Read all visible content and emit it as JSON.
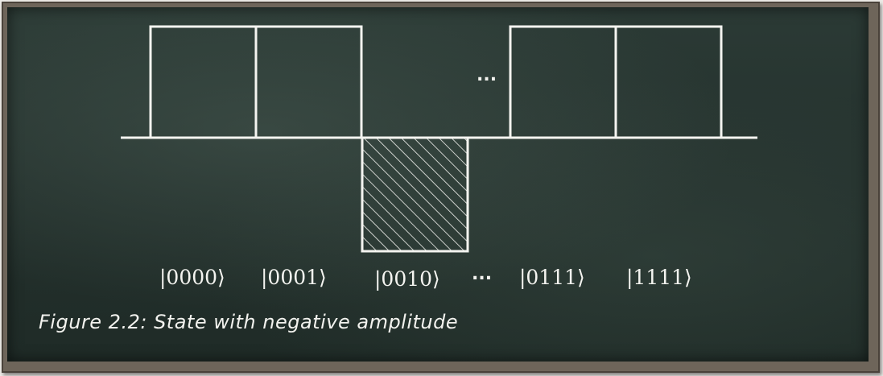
{
  "states": [
    {
      "label": "|0000⟩",
      "amplitude": "positive"
    },
    {
      "label": "|0001⟩",
      "amplitude": "positive"
    },
    {
      "label": "|0010⟩",
      "amplitude": "negative"
    },
    {
      "label": "|0111⟩",
      "amplitude": "positive"
    },
    {
      "label": "|1111⟩",
      "amplitude": "positive"
    }
  ],
  "ellipsis": "...",
  "caption": "Figure 2.2: State with negative amplitude",
  "colors": {
    "board": "#24312d",
    "chalk": "#f4f4f0",
    "frame": "#6e655a"
  }
}
